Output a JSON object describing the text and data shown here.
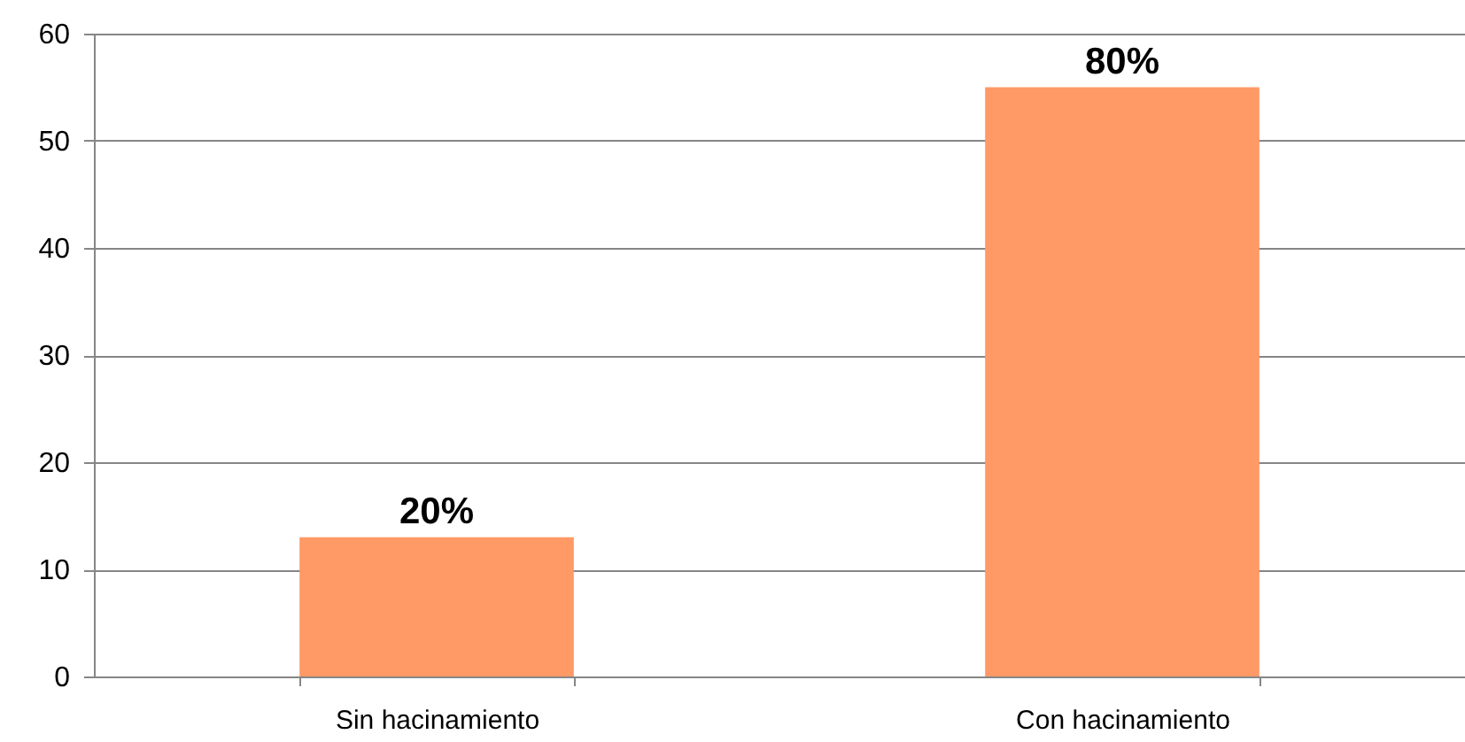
{
  "chart_data": {
    "type": "bar",
    "categories": [
      "Sin hacinamiento",
      "Con hacinamiento"
    ],
    "values": [
      13,
      55
    ],
    "color": "#ff9966",
    "ylim": [
      0,
      60
    ],
    "yticks": [
      0,
      10,
      20,
      30,
      40,
      50,
      60
    ],
    "grid": "y",
    "annotations": [
      {
        "text": "20%",
        "x": "Sin hacinamiento",
        "y": 13
      },
      {
        "text": "80%",
        "x": "Con hacinamiento",
        "y": 55
      }
    ]
  }
}
